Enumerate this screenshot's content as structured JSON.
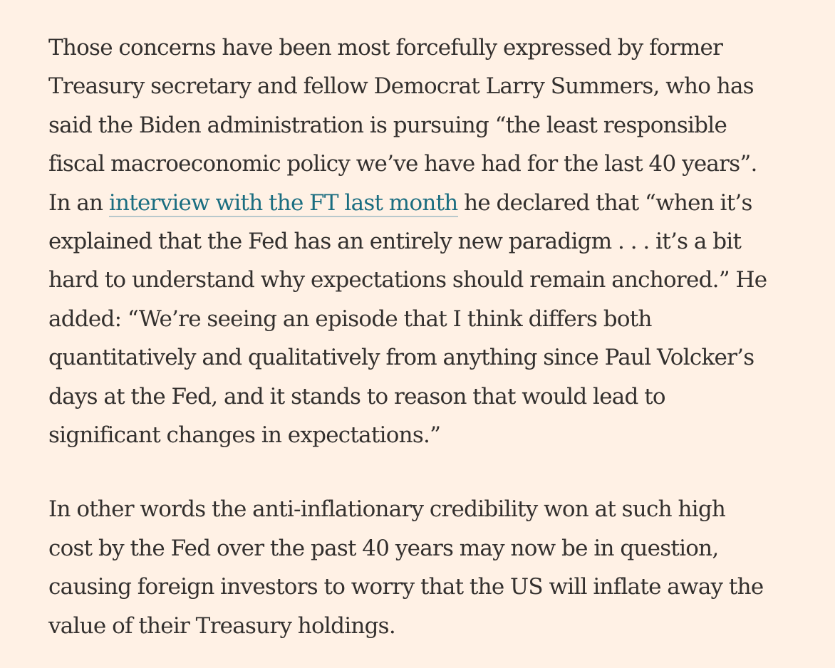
{
  "article": {
    "paragraph_1": {
      "lines": [
        "Those concerns have been most forcefully expressed by former",
        "Treasury secretary and fellow Democrat Larry Summers, who has",
        "said the Biden administration is pursuing “the least responsible",
        "fiscal macroeconomic policy we’ve have had for the last 40 years”."
      ],
      "line_5_before": "In an ",
      "link_text": "interview with the FT last month",
      "line_5_after": " he declared that “when it’s",
      "lines_after": [
        "explained that the Fed has an entirely new paradigm . . . it’s a bit",
        "hard to understand why expectations should remain anchored.” He",
        "added: “We’re seeing an episode that I think differs both",
        "quantitatively and qualitatively from anything since Paul Volcker’s",
        "days at the Fed, and it stands to reason that would lead to",
        "significant changes in expectations.”"
      ]
    },
    "paragraph_2": {
      "lines": [
        "In other words the anti-inflationary credibility won at such high",
        "cost by the Fed over the past 40 years may now be in question,",
        "causing foreign investors to worry that the US will inflate away the",
        "value of their Treasury holdings."
      ]
    }
  },
  "colors": {
    "background": "#fff1e5",
    "text": "#33302e",
    "link": "#1a6d80"
  }
}
